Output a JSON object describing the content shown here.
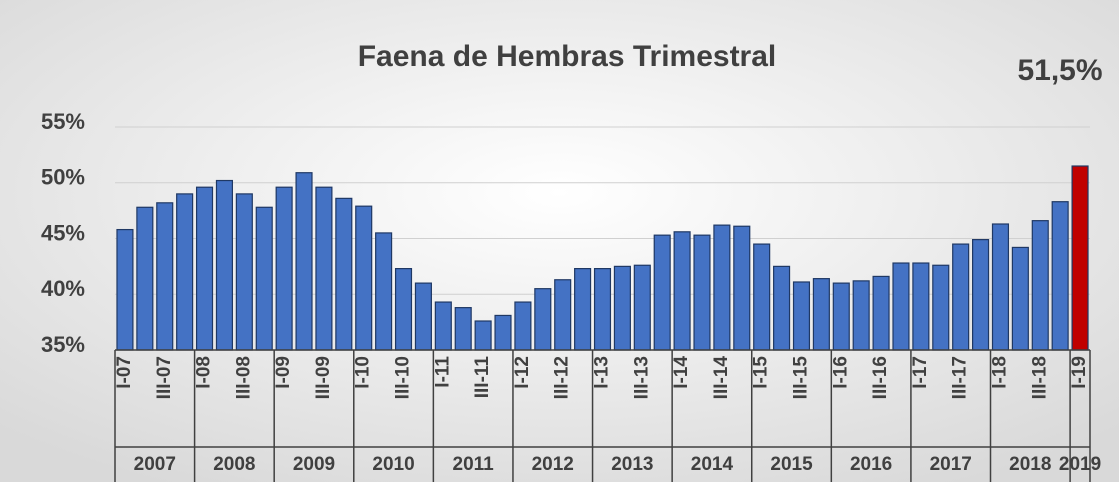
{
  "chart_data": {
    "type": "bar",
    "title": "Faena de Hembras Trimestral",
    "annotation": "51,5%",
    "categories": [
      "I-07",
      null,
      "III-07",
      null,
      "I-08",
      null,
      "III-08",
      null,
      "I-09",
      null,
      "III-09",
      null,
      "I-10",
      null,
      "III-10",
      null,
      "I-11",
      null,
      "III-11",
      null,
      "I-12",
      null,
      "III-12",
      null,
      "I-13",
      null,
      "III-13",
      null,
      "I-14",
      null,
      "III-14",
      null,
      "I-15",
      null,
      "III-15",
      null,
      "I-16",
      null,
      "III-16",
      null,
      "I-17",
      null,
      "III-17",
      null,
      "I-18",
      null,
      "III-18",
      null,
      "I-19"
    ],
    "groups": [
      {
        "label": "2007",
        "size": 4
      },
      {
        "label": "2008",
        "size": 4
      },
      {
        "label": "2009",
        "size": 4
      },
      {
        "label": "2010",
        "size": 4
      },
      {
        "label": "2011",
        "size": 4
      },
      {
        "label": "2012",
        "size": 4
      },
      {
        "label": "2013",
        "size": 4
      },
      {
        "label": "2014",
        "size": 4
      },
      {
        "label": "2015",
        "size": 4
      },
      {
        "label": "2016",
        "size": 4
      },
      {
        "label": "2017",
        "size": 4
      },
      {
        "label": "2018",
        "size": 4
      },
      {
        "label": "2019",
        "size": 1
      }
    ],
    "values": [
      45.8,
      47.8,
      48.2,
      49.0,
      49.6,
      50.2,
      49.0,
      47.8,
      49.6,
      50.9,
      49.6,
      48.6,
      47.9,
      45.5,
      42.3,
      41.0,
      39.3,
      38.8,
      37.6,
      38.1,
      39.3,
      40.5,
      41.3,
      42.3,
      42.3,
      42.5,
      42.6,
      45.3,
      45.6,
      45.3,
      46.2,
      46.1,
      44.5,
      42.5,
      41.1,
      41.4,
      41.0,
      41.2,
      41.6,
      42.8,
      42.8,
      42.6,
      44.5,
      44.9,
      46.3,
      44.2,
      46.6,
      48.3,
      51.5
    ],
    "color": "#4472c4",
    "last_color": "#c00000",
    "ylim": [
      35,
      55
    ],
    "yticks": [
      {
        "value": 35,
        "label": "35%"
      },
      {
        "value": 40,
        "label": "40%"
      },
      {
        "value": 45,
        "label": "45%"
      },
      {
        "value": 50,
        "label": "50%"
      },
      {
        "value": 55,
        "label": "55%"
      }
    ],
    "grid": true
  }
}
